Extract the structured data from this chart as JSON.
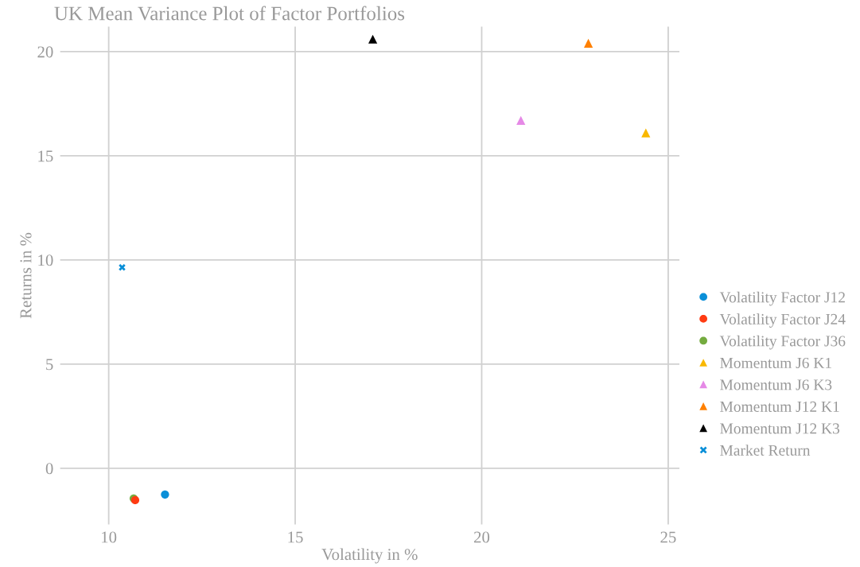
{
  "chart_data": {
    "type": "scatter",
    "title": "UK Mean Variance Plot of Factor Portfolios",
    "xlabel": "Volatility in %",
    "ylabel": "Returns in %",
    "xlim": [
      8.7,
      25.3
    ],
    "ylim": [
      -2.7,
      21.2
    ],
    "xticks": [
      10,
      15,
      20,
      25
    ],
    "yticks": [
      0,
      5,
      10,
      15,
      20
    ],
    "grid": true,
    "legend": "right",
    "series": [
      {
        "name": "Volatility Factor J12",
        "color": "#0a8fd8",
        "marker": "circle",
        "x": [
          11.51
        ],
        "values": [
          -1.26
        ]
      },
      {
        "name": "Volatility Factor J24",
        "color": "#ff3b12",
        "marker": "circle",
        "x": [
          10.71
        ],
        "values": [
          -1.53
        ]
      },
      {
        "name": "Volatility Factor J36",
        "color": "#74ab3f",
        "marker": "circle",
        "x": [
          10.67
        ],
        "values": [
          -1.45
        ]
      },
      {
        "name": "Momentum J6 K1",
        "color": "#f9b800",
        "marker": "triangle",
        "x": [
          24.4
        ],
        "values": [
          16.1
        ]
      },
      {
        "name": "Momentum J6 K3",
        "color": "#e589e6",
        "marker": "triangle",
        "x": [
          21.05
        ],
        "values": [
          16.7
        ]
      },
      {
        "name": "Momentum J12 K1",
        "color": "#ff8000",
        "marker": "triangle",
        "x": [
          22.86
        ],
        "values": [
          20.4
        ]
      },
      {
        "name": "Momentum J12 K3",
        "color": "#000000",
        "marker": "triangle",
        "x": [
          17.08
        ],
        "values": [
          20.6
        ]
      },
      {
        "name": "Market Return",
        "color": "#0a8fd8",
        "marker": "cross",
        "x": [
          10.36
        ],
        "values": [
          9.64
        ]
      }
    ]
  }
}
